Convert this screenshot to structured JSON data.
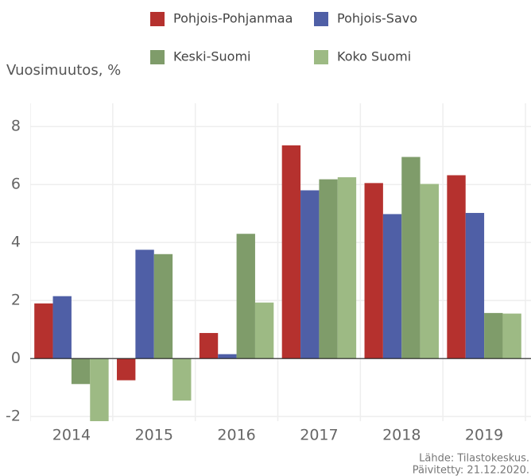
{
  "chart_data": {
    "type": "bar",
    "y_axis_label": "Vuosimuutos, %",
    "categories": [
      "2014",
      "2015",
      "2016",
      "2017",
      "2018",
      "2019"
    ],
    "series": [
      {
        "name": "Pohjois-Pohjanmaa",
        "color": "#b5312e",
        "values": [
          1.9,
          -0.75,
          0.88,
          7.35,
          6.05,
          6.32
        ]
      },
      {
        "name": "Pohjois-Savo",
        "color": "#4f5fa6",
        "values": [
          2.15,
          3.75,
          0.15,
          5.8,
          4.98,
          5.02
        ]
      },
      {
        "name": "Keski-Suomi",
        "color": "#7f9c6a",
        "values": [
          -0.88,
          3.6,
          4.3,
          6.18,
          6.95,
          1.57
        ]
      },
      {
        "name": "Koko Suomi",
        "color": "#9dba84",
        "values": [
          -2.3,
          -1.45,
          1.93,
          6.25,
          6.02,
          1.55
        ]
      }
    ],
    "ylim": [
      -2.16,
      8.8
    ],
    "yticks": [
      -2,
      0,
      2,
      4,
      6,
      8
    ],
    "grid": true,
    "source": [
      "Lähde: Tilastokeskus.",
      "Päivitetty: 21.12.2020."
    ]
  }
}
